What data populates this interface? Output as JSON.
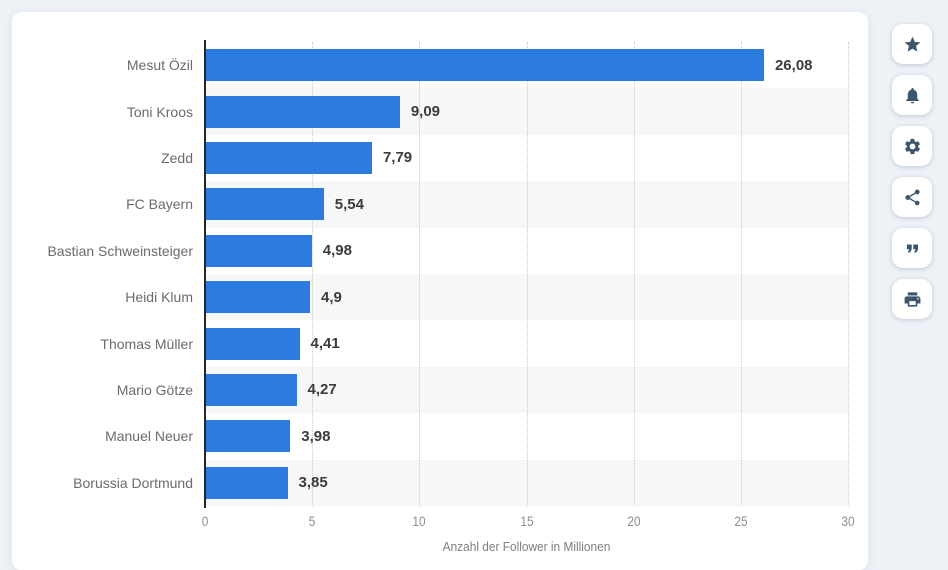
{
  "page": {
    "background_color": "#eef2f7",
    "card_color": "#ffffff"
  },
  "chart_data": {
    "type": "bar",
    "orientation": "horizontal",
    "title": "",
    "xlabel": "Anzahl der Follower in Millionen",
    "categories": [
      "Mesut Özil",
      "Toni Kroos",
      "Zedd",
      "FC Bayern",
      "Bastian Schweinsteiger",
      "Heidi Klum",
      "Thomas Müller",
      "Mario Götze",
      "Manuel Neuer",
      "Borussia Dortmund"
    ],
    "values": [
      26.08,
      9.09,
      7.79,
      5.54,
      4.98,
      4.9,
      4.41,
      4.27,
      3.98,
      3.85
    ],
    "value_labels": [
      "26,08",
      "9,09",
      "7,79",
      "5,54",
      "4,98",
      "4,9",
      "4,41",
      "4,27",
      "3,98",
      "3,85"
    ],
    "xticks": [
      0,
      5,
      10,
      15,
      20,
      25,
      30
    ],
    "xlim": [
      0,
      30
    ],
    "grid": "vertical-dotted",
    "legend": "none",
    "bar_color": "#2c7bde",
    "row_stripe_color": "#f7f7f7",
    "axis_line_color": "#262626"
  },
  "toolbar": {
    "buttons": [
      {
        "name": "favorite",
        "icon": "star-icon"
      },
      {
        "name": "notifications",
        "icon": "bell-icon"
      },
      {
        "name": "settings",
        "icon": "gear-icon"
      },
      {
        "name": "share",
        "icon": "share-icon"
      },
      {
        "name": "cite",
        "icon": "quote-icon"
      },
      {
        "name": "print",
        "icon": "printer-icon"
      }
    ]
  }
}
